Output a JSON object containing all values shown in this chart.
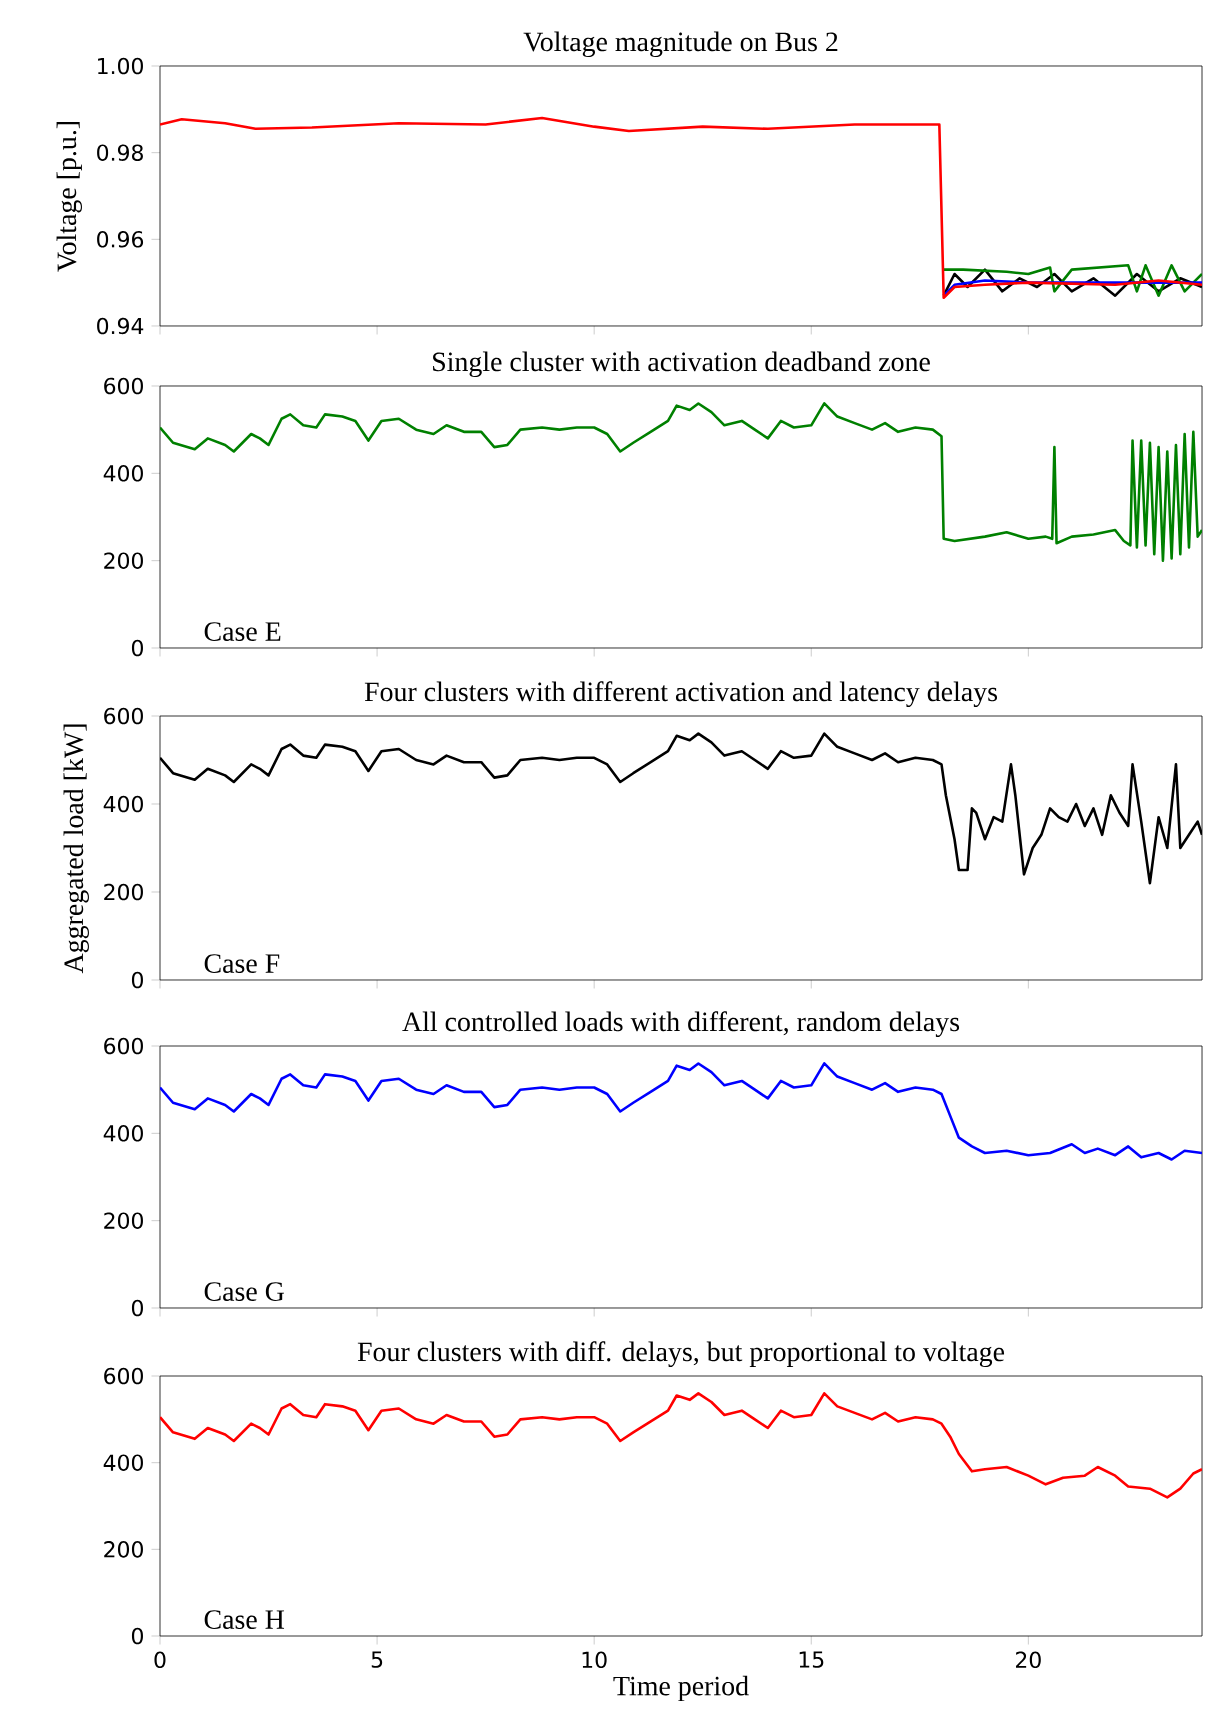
{
  "chart_data": [
    {
      "type": "line",
      "title": "Voltage magnitude on Bus 2",
      "ylabel": "Voltage [p.u.]",
      "xlim": [
        0,
        24
      ],
      "xticks": [
        0,
        5,
        10,
        15,
        20
      ],
      "ylim": [
        0.94,
        1.0
      ],
      "yticks": [
        0.94,
        0.96,
        0.98,
        {
          "value": 1.0,
          "label": "1.00"
        }
      ],
      "tick_labels": "y",
      "series": [
        {
          "color": "#000000",
          "x": [
            18.05,
            18.3,
            18.6,
            19,
            19.4,
            19.8,
            20.2,
            20.6,
            21,
            21.5,
            22,
            22.5,
            23,
            23.5,
            24
          ],
          "values": [
            0.947,
            0.952,
            0.949,
            0.953,
            0.948,
            0.951,
            0.949,
            0.952,
            0.948,
            0.951,
            0.947,
            0.952,
            0.948,
            0.951,
            0.949
          ]
        },
        {
          "color": "#008000",
          "x": [
            18.05,
            18.5,
            19.5,
            20,
            20.5,
            20.6,
            21,
            22.3,
            22.5,
            22.7,
            23,
            23.3,
            23.6,
            24
          ],
          "values": [
            0.953,
            0.953,
            0.9525,
            0.952,
            0.9535,
            0.948,
            0.953,
            0.954,
            0.948,
            0.954,
            0.947,
            0.954,
            0.948,
            0.952
          ]
        },
        {
          "color": "#0000ff",
          "x": [
            18.05,
            18.3,
            19,
            20,
            21,
            22,
            23,
            24
          ],
          "values": [
            0.947,
            0.9495,
            0.9505,
            0.95,
            0.95,
            null,
            null,
            0.95
          ]
        },
        {
          "color": "#ff0000",
          "x": [
            0,
            0.5,
            1.5,
            2.2,
            3.5,
            5.5,
            7.5,
            8.8,
            10,
            10.8,
            12.5,
            14,
            16,
            17.95,
            18.05,
            18.3,
            19,
            20,
            22,
            23,
            24
          ],
          "values": [
            0.9865,
            0.9877,
            0.9868,
            0.9855,
            0.9858,
            0.9868,
            0.9865,
            0.988,
            0.986,
            0.985,
            0.986,
            0.9855,
            0.9865,
            0.9865,
            0.9465,
            0.949,
            0.9495,
            0.95,
            0.9495,
            0.9505,
            0.9495
          ]
        }
      ]
    },
    {
      "type": "line",
      "title": "Single cluster with activation deadband zone",
      "annotations": [
        "Case E"
      ],
      "xlim": [
        0,
        24
      ],
      "xticks": [
        0,
        5,
        10,
        15,
        20
      ],
      "ylim": [
        0,
        600
      ],
      "yticks": [
        0,
        200,
        400,
        600
      ],
      "tick_labels": "y",
      "series": [
        {
          "color": "#008000",
          "x": [
            0,
            0.3,
            0.8,
            1.1,
            1.5,
            1.7,
            2.1,
            2.3,
            2.5,
            2.8,
            3.0,
            3.3,
            3.6,
            3.8,
            4.2,
            4.5,
            4.8,
            5.1,
            5.5,
            5.9,
            6.3,
            6.6,
            7.0,
            7.4,
            7.7,
            8.0,
            8.3,
            8.8,
            9.2,
            9.6,
            10.0,
            10.3,
            10.6,
            10.9,
            11.3,
            11.7,
            11.9,
            12.2,
            12.4,
            12.7,
            13.0,
            13.4,
            13.7,
            14.0,
            14.3,
            14.6,
            15.0,
            15.3,
            15.6,
            16.0,
            16.4,
            16.7,
            17.0,
            17.4,
            17.8,
            18.0,
            18.05,
            18.3,
            19.0,
            19.5,
            20.0,
            20.4,
            20.55,
            20.6,
            20.65,
            21.0,
            21.5,
            22.0,
            22.2,
            22.35,
            22.4,
            22.5,
            22.6,
            22.7,
            22.8,
            22.9,
            23.0,
            23.1,
            23.2,
            23.3,
            23.4,
            23.5,
            23.6,
            23.7,
            23.8,
            23.9,
            24.0
          ],
          "values": [
            505,
            470,
            455,
            480,
            465,
            450,
            490,
            480,
            465,
            525,
            535,
            510,
            505,
            535,
            530,
            520,
            475,
            520,
            525,
            500,
            490,
            510,
            495,
            495,
            460,
            465,
            500,
            505,
            500,
            505,
            505,
            490,
            450,
            470,
            495,
            520,
            555,
            545,
            560,
            540,
            510,
            520,
            500,
            480,
            520,
            505,
            510,
            560,
            530,
            515,
            500,
            515,
            495,
            505,
            500,
            485,
            250,
            245,
            255,
            265,
            250,
            255,
            250,
            460,
            240,
            255,
            260,
            270,
            245,
            235,
            475,
            230,
            475,
            235,
            470,
            215,
            460,
            200,
            450,
            205,
            465,
            215,
            490,
            230,
            495,
            255,
            270
          ]
        }
      ]
    },
    {
      "type": "line",
      "title": "Four clusters with different activation and latency delays",
      "ylabel": "Aggregated load [kW]",
      "annotations": [
        "Case F"
      ],
      "xlim": [
        0,
        24
      ],
      "xticks": [
        0,
        5,
        10,
        15,
        20
      ],
      "ylim": [
        0,
        600
      ],
      "yticks": [
        0,
        200,
        400,
        600
      ],
      "tick_labels": "y",
      "series": [
        {
          "color": "#000000",
          "x": [
            0,
            0.3,
            0.8,
            1.1,
            1.5,
            1.7,
            2.1,
            2.3,
            2.5,
            2.8,
            3.0,
            3.3,
            3.6,
            3.8,
            4.2,
            4.5,
            4.8,
            5.1,
            5.5,
            5.9,
            6.3,
            6.6,
            7.0,
            7.4,
            7.7,
            8.0,
            8.3,
            8.8,
            9.2,
            9.6,
            10.0,
            10.3,
            10.6,
            10.9,
            11.3,
            11.7,
            11.9,
            12.2,
            12.4,
            12.7,
            13.0,
            13.4,
            13.7,
            14.0,
            14.3,
            14.6,
            15.0,
            15.3,
            15.6,
            16.0,
            16.4,
            16.7,
            17.0,
            17.4,
            17.8,
            18.0,
            18.1,
            18.3,
            18.4,
            18.6,
            18.7,
            18.8,
            19.0,
            19.2,
            19.4,
            19.6,
            19.7,
            19.9,
            20.1,
            20.3,
            20.5,
            20.7,
            20.9,
            21.1,
            21.3,
            21.5,
            21.7,
            21.9,
            22.1,
            22.3,
            22.4,
            22.6,
            22.8,
            23.0,
            23.2,
            23.4,
            23.5,
            23.7,
            23.9,
            24.0
          ],
          "values": [
            505,
            470,
            455,
            480,
            465,
            450,
            490,
            480,
            465,
            525,
            535,
            510,
            505,
            535,
            530,
            520,
            475,
            520,
            525,
            500,
            490,
            510,
            495,
            495,
            460,
            465,
            500,
            505,
            500,
            505,
            505,
            490,
            450,
            470,
            495,
            520,
            555,
            545,
            560,
            540,
            510,
            520,
            500,
            480,
            520,
            505,
            510,
            560,
            530,
            515,
            500,
            515,
            495,
            505,
            500,
            490,
            420,
            320,
            250,
            250,
            390,
            380,
            320,
            370,
            360,
            490,
            420,
            240,
            300,
            330,
            390,
            370,
            360,
            400,
            350,
            390,
            330,
            420,
            380,
            350,
            490,
            360,
            220,
            370,
            300,
            490,
            300,
            330,
            360,
            330
          ]
        }
      ]
    },
    {
      "type": "line",
      "title": "All controlled loads with different, random delays",
      "annotations": [
        "Case G"
      ],
      "xlim": [
        0,
        24
      ],
      "xticks": [
        0,
        5,
        10,
        15,
        20
      ],
      "ylim": [
        0,
        600
      ],
      "yticks": [
        0,
        200,
        400,
        600
      ],
      "tick_labels": "y",
      "series": [
        {
          "color": "#0000ff",
          "x": [
            0,
            0.3,
            0.8,
            1.1,
            1.5,
            1.7,
            2.1,
            2.3,
            2.5,
            2.8,
            3.0,
            3.3,
            3.6,
            3.8,
            4.2,
            4.5,
            4.8,
            5.1,
            5.5,
            5.9,
            6.3,
            6.6,
            7.0,
            7.4,
            7.7,
            8.0,
            8.3,
            8.8,
            9.2,
            9.6,
            10.0,
            10.3,
            10.6,
            10.9,
            11.3,
            11.7,
            11.9,
            12.2,
            12.4,
            12.7,
            13.0,
            13.4,
            13.7,
            14.0,
            14.3,
            14.6,
            15.0,
            15.3,
            15.6,
            16.0,
            16.4,
            16.7,
            17.0,
            17.4,
            17.8,
            18.0,
            18.2,
            18.4,
            18.7,
            19.0,
            19.5,
            20.0,
            20.5,
            21.0,
            21.3,
            21.6,
            22.0,
            22.3,
            22.6,
            23.0,
            23.3,
            23.6,
            24.0
          ],
          "values": [
            505,
            470,
            455,
            480,
            465,
            450,
            490,
            480,
            465,
            525,
            535,
            510,
            505,
            535,
            530,
            520,
            475,
            520,
            525,
            500,
            490,
            510,
            495,
            495,
            460,
            465,
            500,
            505,
            500,
            505,
            505,
            490,
            450,
            470,
            495,
            520,
            555,
            545,
            560,
            540,
            510,
            520,
            500,
            480,
            520,
            505,
            510,
            560,
            530,
            515,
            500,
            515,
            495,
            505,
            500,
            490,
            440,
            390,
            370,
            355,
            360,
            350,
            355,
            375,
            355,
            365,
            350,
            370,
            345,
            355,
            340,
            360,
            355
          ]
        }
      ]
    },
    {
      "type": "line",
      "title": "Four clusters with diff. delays, but proportional to voltage",
      "xlabel": "Time period",
      "annotations": [
        "Case H"
      ],
      "xlim": [
        0,
        24
      ],
      "xticks": [
        0,
        5,
        10,
        15,
        20
      ],
      "ylim": [
        0,
        600
      ],
      "yticks": [
        0,
        200,
        400,
        600
      ],
      "series": [
        {
          "color": "#ff0000",
          "x": [
            0,
            0.3,
            0.8,
            1.1,
            1.5,
            1.7,
            2.1,
            2.3,
            2.5,
            2.8,
            3.0,
            3.3,
            3.6,
            3.8,
            4.2,
            4.5,
            4.8,
            5.1,
            5.5,
            5.9,
            6.3,
            6.6,
            7.0,
            7.4,
            7.7,
            8.0,
            8.3,
            8.8,
            9.2,
            9.6,
            10.0,
            10.3,
            10.6,
            10.9,
            11.3,
            11.7,
            11.9,
            12.2,
            12.4,
            12.7,
            13.0,
            13.4,
            13.7,
            14.0,
            14.3,
            14.6,
            15.0,
            15.3,
            15.6,
            16.0,
            16.4,
            16.7,
            17.0,
            17.4,
            17.8,
            18.0,
            18.2,
            18.4,
            18.7,
            19.0,
            19.5,
            20.0,
            20.4,
            20.8,
            21.3,
            21.6,
            22.0,
            22.3,
            22.8,
            23.2,
            23.5,
            23.8,
            24.0
          ],
          "values": [
            505,
            470,
            455,
            480,
            465,
            450,
            490,
            480,
            465,
            525,
            535,
            510,
            505,
            535,
            530,
            520,
            475,
            520,
            525,
            500,
            490,
            510,
            495,
            495,
            460,
            465,
            500,
            505,
            500,
            505,
            505,
            490,
            450,
            470,
            495,
            520,
            555,
            545,
            560,
            540,
            510,
            520,
            500,
            480,
            520,
            505,
            510,
            560,
            530,
            515,
            500,
            515,
            495,
            505,
            500,
            490,
            460,
            420,
            380,
            385,
            390,
            370,
            350,
            365,
            370,
            390,
            370,
            345,
            340,
            320,
            340,
            375,
            385
          ]
        }
      ]
    }
  ]
}
